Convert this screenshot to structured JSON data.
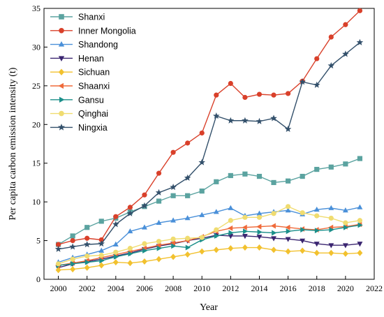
{
  "chart_data": {
    "type": "line",
    "xlabel": "Year",
    "ylabel": "Per capita carbon emission intensity (t)",
    "xlim": [
      1999,
      2022
    ],
    "ylim": [
      0,
      35
    ],
    "x_ticks": [
      2000,
      2002,
      2004,
      2006,
      2008,
      2010,
      2012,
      2014,
      2016,
      2018,
      2020,
      2022
    ],
    "y_ticks": [
      0,
      5,
      10,
      15,
      20,
      25,
      30,
      35
    ],
    "legend_position": "top-left",
    "grid": false,
    "x": [
      2000,
      2001,
      2002,
      2003,
      2004,
      2005,
      2006,
      2007,
      2008,
      2009,
      2010,
      2011,
      2012,
      2013,
      2014,
      2015,
      2016,
      2017,
      2018,
      2019,
      2020,
      2021
    ],
    "series": [
      {
        "name": "Shanxi",
        "color": "#5ba3a0",
        "marker": "square",
        "values": [
          4.5,
          5.6,
          6.7,
          7.5,
          7.9,
          8.7,
          9.4,
          10.1,
          10.8,
          10.8,
          11.4,
          12.6,
          13.4,
          13.6,
          13.3,
          12.5,
          12.7,
          13.3,
          14.2,
          14.5,
          14.9,
          15.6
        ]
      },
      {
        "name": "Inner Mongolia",
        "color": "#d9402a",
        "marker": "circle",
        "values": [
          4.5,
          5.0,
          5.3,
          5.1,
          8.1,
          9.3,
          10.9,
          13.7,
          16.4,
          17.6,
          18.9,
          23.8,
          25.3,
          23.5,
          23.9,
          23.8,
          24.0,
          25.6,
          28.5,
          31.3,
          32.9,
          34.7
        ]
      },
      {
        "name": "Shandong",
        "color": "#4a90d9",
        "marker": "triangle-up",
        "values": [
          2.2,
          2.8,
          3.2,
          3.7,
          4.5,
          6.2,
          6.7,
          7.3,
          7.6,
          7.9,
          8.3,
          8.7,
          9.2,
          8.2,
          8.5,
          8.7,
          8.9,
          8.4,
          9.0,
          9.2,
          8.9,
          9.3
        ]
      },
      {
        "name": "Henan",
        "color": "#3a2570",
        "marker": "triangle-down",
        "values": [
          1.5,
          2.0,
          2.3,
          2.6,
          3.0,
          3.4,
          3.9,
          4.3,
          4.6,
          5.0,
          5.3,
          5.7,
          5.6,
          5.6,
          5.5,
          5.3,
          5.2,
          5.0,
          4.6,
          4.4,
          4.4,
          4.6
        ]
      },
      {
        "name": "Sichuan",
        "color": "#f2c12e",
        "marker": "diamond",
        "values": [
          1.2,
          1.3,
          1.5,
          1.8,
          2.2,
          2.1,
          2.3,
          2.6,
          2.9,
          3.2,
          3.6,
          3.8,
          4.0,
          4.1,
          4.1,
          3.8,
          3.6,
          3.7,
          3.4,
          3.4,
          3.3,
          3.4
        ]
      },
      {
        "name": "Shaanxi",
        "color": "#ef6a3a",
        "marker": "triangle-left",
        "values": [
          1.8,
          2.1,
          2.4,
          2.8,
          3.2,
          3.6,
          4.0,
          4.4,
          4.7,
          5.0,
          5.5,
          6.2,
          6.6,
          6.7,
          6.8,
          6.9,
          6.7,
          6.5,
          6.4,
          6.7,
          6.8,
          7.1
        ]
      },
      {
        "name": "Gansu",
        "color": "#1b8f8a",
        "marker": "triangle-right",
        "values": [
          1.8,
          2.0,
          2.2,
          2.4,
          2.9,
          3.3,
          3.7,
          4.0,
          4.3,
          4.1,
          5.1,
          5.6,
          6.0,
          6.2,
          6.1,
          6.0,
          6.2,
          6.4,
          6.3,
          6.4,
          6.7,
          7.0
        ]
      },
      {
        "name": "Qinghai",
        "color": "#f0dc70",
        "marker": "circle",
        "values": [
          2.0,
          2.6,
          3.0,
          3.1,
          3.5,
          4.0,
          4.6,
          4.9,
          5.2,
          5.3,
          5.4,
          6.4,
          7.6,
          8.0,
          8.0,
          8.5,
          9.4,
          8.6,
          8.2,
          7.9,
          7.3,
          7.6
        ]
      },
      {
        "name": "Ningxia",
        "color": "#33506b",
        "marker": "star",
        "values": [
          3.9,
          4.2,
          4.5,
          4.6,
          7.1,
          8.5,
          9.5,
          11.2,
          11.9,
          13.1,
          15.1,
          21.1,
          20.5,
          20.5,
          20.4,
          20.8,
          19.4,
          25.5,
          25.1,
          27.6,
          29.1,
          30.6
        ]
      }
    ]
  }
}
